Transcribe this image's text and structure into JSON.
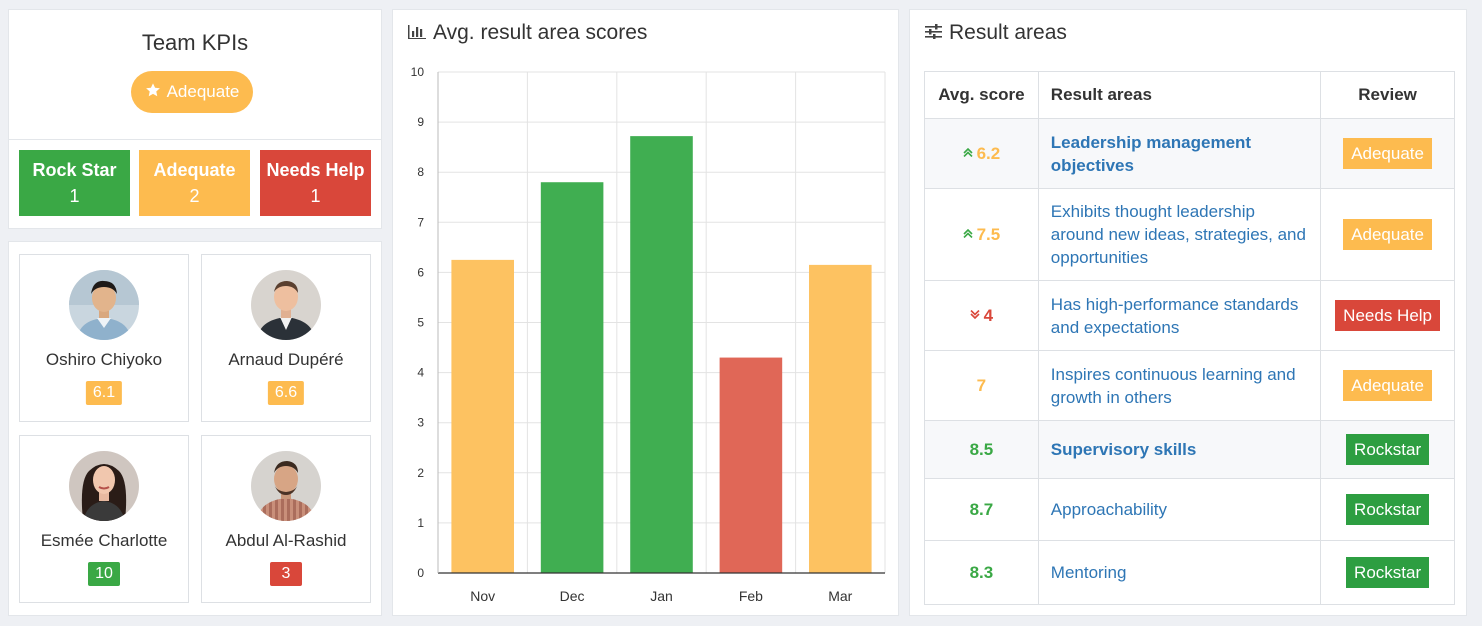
{
  "kpi": {
    "title": "Team KPIs",
    "overall_label": "Adequate",
    "overall_icon": "star-icon",
    "boxes": [
      {
        "label": "Rock Star",
        "count": "1",
        "color": "#3aa845"
      },
      {
        "label": "Adequate",
        "count": "2",
        "color": "#fdbb4f"
      },
      {
        "label": "Needs Help",
        "count": "1",
        "color": "#d9473a"
      }
    ]
  },
  "people": [
    {
      "name": "Oshiro Chiyoko",
      "score": "6.1",
      "status": "yellow"
    },
    {
      "name": "Arnaud Dupéré",
      "score": "6.6",
      "status": "yellow"
    },
    {
      "name": "Esmée Charlotte",
      "score": "10",
      "status": "green"
    },
    {
      "name": "Abdul Al-Rashid",
      "score": "3",
      "status": "red"
    }
  ],
  "chart_panel": {
    "title": "Avg. result area scores",
    "icon": "bar-chart-icon"
  },
  "chart_data": {
    "type": "bar",
    "categories": [
      "Nov",
      "Dec",
      "Jan",
      "Feb",
      "Mar"
    ],
    "values": [
      6.25,
      7.8,
      8.72,
      4.3,
      6.15
    ],
    "colors": [
      "#fdc261",
      "#40ae51",
      "#40ae51",
      "#e06757",
      "#fdc261"
    ],
    "ylim": [
      0,
      10
    ],
    "yticks": [
      "0",
      "1",
      "2",
      "3",
      "4",
      "5",
      "6",
      "7",
      "8",
      "9",
      "10"
    ],
    "grid": true
  },
  "result_panel": {
    "title": "Result areas",
    "icon": "sliders-icon",
    "headers": {
      "score": "Avg. score",
      "area": "Result areas",
      "review": "Review"
    },
    "rows": [
      {
        "score": "6.2",
        "trend": "up",
        "area": "Leadership management objectives",
        "review": "Adequate",
        "tone": "yellow",
        "group": true
      },
      {
        "score": "7.5",
        "trend": "up",
        "area": "Exhibits thought leadership around new ideas, strategies, and opportunities",
        "review": "Adequate",
        "tone": "yellow",
        "group": false
      },
      {
        "score": "4",
        "trend": "down",
        "area": "Has high-performance standards and expectations",
        "review": "Needs Help",
        "tone": "red",
        "group": false
      },
      {
        "score": "7",
        "trend": "none",
        "area": "Inspires continuous learning and growth in others",
        "review": "Adequate",
        "tone": "yellow",
        "group": false
      },
      {
        "score": "8.5",
        "trend": "none",
        "area": "Supervisory skills",
        "review": "Rockstar",
        "tone": "green",
        "group": true
      },
      {
        "score": "8.7",
        "trend": "none",
        "area": "Approachability",
        "review": "Rockstar",
        "tone": "green",
        "group": false
      },
      {
        "score": "8.3",
        "trend": "none",
        "area": "Mentoring",
        "review": "Rockstar",
        "tone": "green",
        "group": false
      }
    ]
  }
}
